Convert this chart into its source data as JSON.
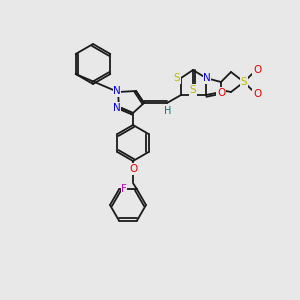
{
  "background_color": "#e8e8e8",
  "bond_color": "#1a1a1a",
  "atom_colors": {
    "N": "#0000ee",
    "O": "#ee0000",
    "S": "#bbbb00",
    "F": "#cc00cc",
    "H": "#007777",
    "C": "#1a1a1a"
  },
  "figsize": [
    3.0,
    3.0
  ],
  "dpi": 100
}
